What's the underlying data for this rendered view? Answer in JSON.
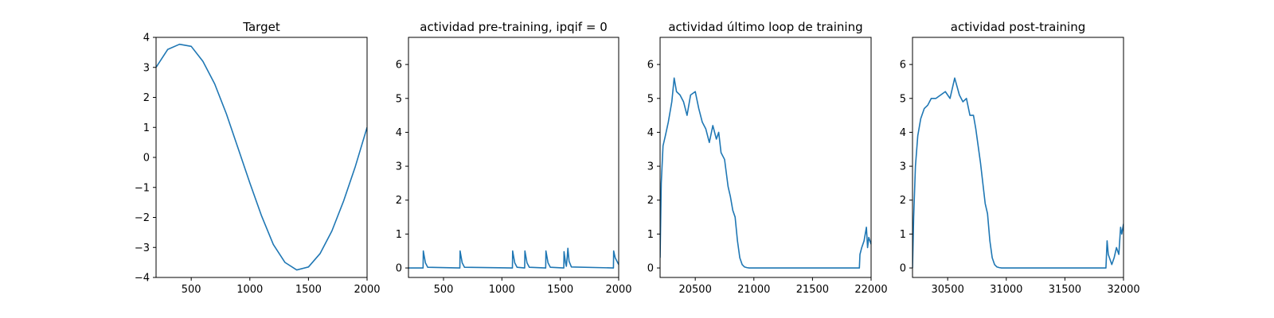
{
  "chart_data": [
    {
      "type": "line",
      "title": "Target",
      "xlabel": "",
      "ylabel": "",
      "xlim": [
        200,
        2000
      ],
      "ylim": [
        -4,
        4
      ],
      "xticks": [
        500,
        1000,
        1500,
        2000
      ],
      "yticks": [
        -4,
        -3,
        -2,
        -1,
        0,
        1,
        2,
        3,
        4
      ],
      "xtick_labels": [
        "500",
        "1000",
        "1500",
        "2000"
      ],
      "ytick_labels": [
        "−4",
        "−3",
        "−2",
        "−1",
        "0",
        "1",
        "2",
        "3",
        "4"
      ],
      "grid": false,
      "color": "#1f77b4",
      "series": [
        {
          "x": [
            200,
            300,
            400,
            500,
            600,
            700,
            800,
            900,
            1000,
            1100,
            1200,
            1300,
            1400,
            1500,
            1600,
            1700,
            1800,
            1900,
            2000
          ],
          "y": [
            3.0,
            3.6,
            3.77,
            3.7,
            3.2,
            2.45,
            1.45,
            0.3,
            -0.85,
            -1.95,
            -2.9,
            -3.5,
            -3.75,
            -3.65,
            -3.2,
            -2.45,
            -1.45,
            -0.3,
            1.0
          ]
        }
      ]
    },
    {
      "type": "line",
      "title": "actividad pre-training, ipqif = 0",
      "xlabel": "",
      "ylabel": "",
      "xlim": [
        200,
        2000
      ],
      "ylim": [
        -0.28,
        6.8
      ],
      "xticks": [
        500,
        1000,
        1500,
        2000
      ],
      "yticks": [
        0,
        1,
        2,
        3,
        4,
        5,
        6
      ],
      "xtick_labels": [
        "500",
        "1000",
        "1500",
        "2000"
      ],
      "ytick_labels": [
        "0",
        "1",
        "2",
        "3",
        "4",
        "5",
        "6"
      ],
      "grid": false,
      "color": "#1f77b4",
      "series": [
        {
          "x": [
            200,
            325,
            327,
            345,
            365,
            640,
            642,
            660,
            680,
            1090,
            1092,
            1110,
            1130,
            1195,
            1197,
            1215,
            1235,
            1375,
            1377,
            1395,
            1415,
            1530,
            1532,
            1545,
            1552,
            1560,
            1565,
            1575,
            1595,
            1955,
            1957,
            1970,
            1985,
            2000
          ],
          "y": [
            0,
            0,
            0.5,
            0.15,
            0.02,
            0,
            0.5,
            0.15,
            0.02,
            0,
            0.5,
            0.15,
            0.02,
            0,
            0.5,
            0.15,
            0.02,
            0,
            0.5,
            0.15,
            0.02,
            0,
            0.48,
            0.15,
            0.05,
            0.35,
            0.58,
            0.2,
            0.03,
            0,
            0.5,
            0.3,
            0.2,
            0.1
          ]
        }
      ]
    },
    {
      "type": "line",
      "title": "actividad último loop de training",
      "xlabel": "",
      "ylabel": "",
      "xlim": [
        20200,
        22000
      ],
      "ylim": [
        -0.28,
        6.8
      ],
      "xticks": [
        20500,
        21000,
        21500,
        22000
      ],
      "yticks": [
        0,
        1,
        2,
        3,
        4,
        5,
        6
      ],
      "xtick_labels": [
        "20500",
        "21000",
        "21500",
        "22000"
      ],
      "ytick_labels": [
        "0",
        "1",
        "2",
        "3",
        "4",
        "5",
        "6"
      ],
      "grid": false,
      "color": "#1f77b4",
      "series": [
        {
          "x": [
            20200,
            20210,
            20225,
            20245,
            20270,
            20300,
            20320,
            20340,
            20370,
            20400,
            20430,
            20460,
            20500,
            20530,
            20560,
            20590,
            20620,
            20650,
            20680,
            20700,
            20720,
            20750,
            20780,
            20800,
            20820,
            20840,
            20860,
            20880,
            20900,
            20920,
            20940,
            20960,
            20980,
            21000,
            21500,
            21900,
            21905,
            21920,
            21940,
            21960,
            21970,
            21980,
            22000
          ],
          "y": [
            0.3,
            2.5,
            3.6,
            3.9,
            4.3,
            4.9,
            5.6,
            5.2,
            5.1,
            4.9,
            4.5,
            5.1,
            5.2,
            4.7,
            4.3,
            4.1,
            3.7,
            4.2,
            3.8,
            4.0,
            3.4,
            3.2,
            2.4,
            2.1,
            1.7,
            1.5,
            0.8,
            0.3,
            0.1,
            0.03,
            0.01,
            0.0,
            0.0,
            0.0,
            0.0,
            0.0,
            0.4,
            0.6,
            0.8,
            1.2,
            0.6,
            0.9,
            0.7
          ]
        }
      ]
    },
    {
      "type": "line",
      "title": "actividad post-training",
      "xlabel": "",
      "ylabel": "",
      "xlim": [
        30200,
        32000
      ],
      "ylim": [
        -0.28,
        6.8
      ],
      "xticks": [
        30500,
        31000,
        31500,
        32000
      ],
      "yticks": [
        0,
        1,
        2,
        3,
        4,
        5,
        6
      ],
      "xtick_labels": [
        "30500",
        "31000",
        "31500",
        "32000"
      ],
      "ytick_labels": [
        "0",
        "1",
        "2",
        "3",
        "4",
        "5",
        "6"
      ],
      "grid": false,
      "color": "#1f77b4",
      "series": [
        {
          "x": [
            30200,
            30210,
            30225,
            30245,
            30270,
            30300,
            30330,
            30360,
            30400,
            30440,
            30480,
            30520,
            30560,
            30600,
            30630,
            30660,
            30690,
            30720,
            30740,
            30760,
            30780,
            30800,
            30820,
            30840,
            30860,
            30880,
            30900,
            30920,
            30940,
            30960,
            31000,
            31500,
            31850,
            31860,
            31870,
            31880,
            31890,
            31900,
            31920,
            31940,
            31960,
            31975,
            31985,
            32000
          ],
          "y": [
            0.0,
            1.5,
            3.0,
            3.9,
            4.4,
            4.7,
            4.8,
            5.0,
            5.0,
            5.1,
            5.2,
            5.0,
            5.6,
            5.1,
            4.9,
            5.0,
            4.5,
            4.5,
            4.1,
            3.6,
            3.1,
            2.5,
            1.9,
            1.6,
            0.8,
            0.3,
            0.1,
            0.03,
            0.01,
            0.0,
            0.0,
            0.0,
            0.0,
            0.8,
            0.4,
            0.3,
            0.2,
            0.1,
            0.3,
            0.6,
            0.4,
            1.2,
            1.0,
            1.3
          ]
        }
      ]
    }
  ]
}
